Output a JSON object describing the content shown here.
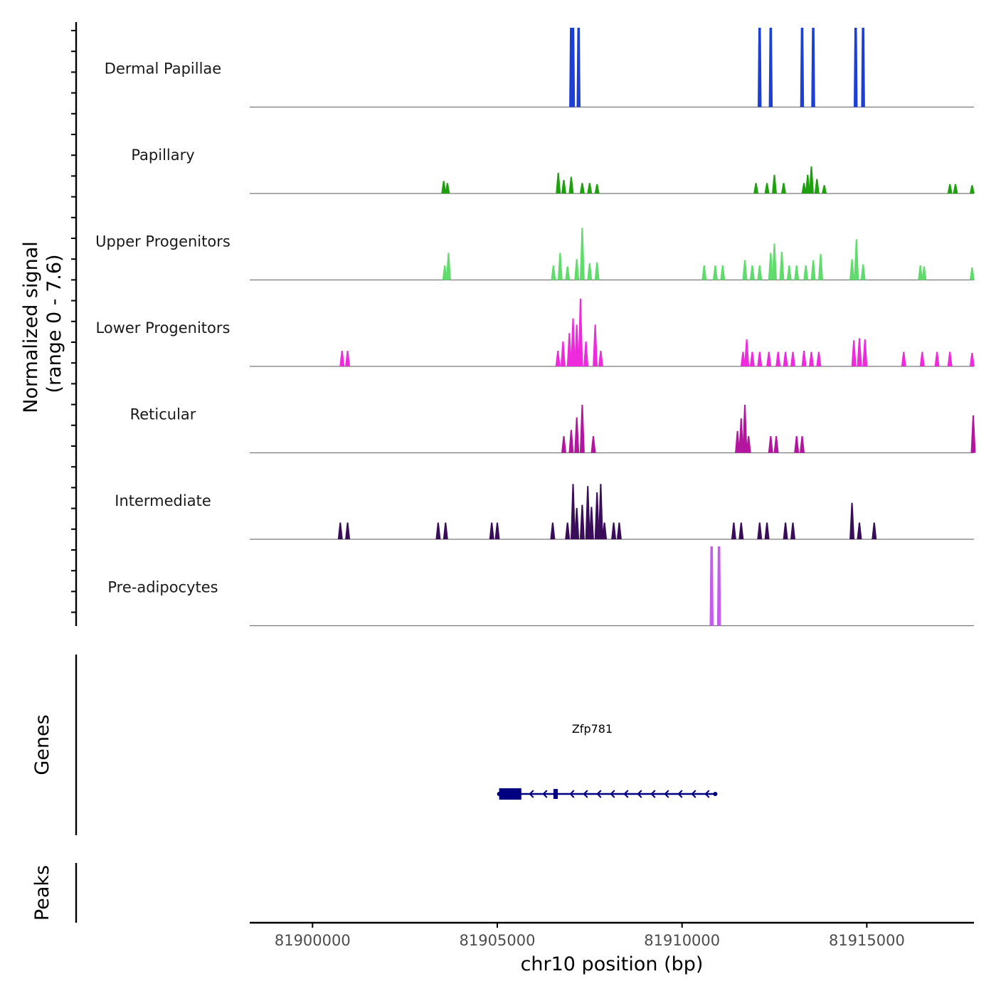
{
  "chart_data": {
    "type": "coverage",
    "y_axis_title": "Normalized signal",
    "y_axis_subtitle": "(range 0 - 7.6)",
    "y_range": [
      0,
      7.6
    ],
    "xlabel": "chr10 position (bp)",
    "xlim": [
      81898300,
      81917900
    ],
    "x_ticks": [
      81900000,
      81905000,
      81910000,
      81915000
    ],
    "x_tick_labels": [
      "81900000",
      "81905000",
      "81910000",
      "81915000"
    ],
    "tracks": [
      {
        "name": "Dermal Papillae",
        "color": "#1c3fd8",
        "peaks": [
          [
            81907000,
            7.6
          ],
          [
            81907050,
            7.6
          ],
          [
            81907200,
            7.6
          ],
          [
            81912100,
            7.6
          ],
          [
            81912400,
            7.6
          ],
          [
            81913250,
            7.6
          ],
          [
            81913550,
            7.6
          ],
          [
            81914700,
            7.6
          ],
          [
            81914900,
            7.6
          ]
        ]
      },
      {
        "name": "Papillary",
        "color": "#1fa00f",
        "peaks": [
          [
            81903550,
            1.2
          ],
          [
            81903650,
            1.0
          ],
          [
            81906650,
            2.0
          ],
          [
            81906800,
            1.3
          ],
          [
            81907000,
            1.6
          ],
          [
            81907300,
            1.0
          ],
          [
            81907500,
            1.0
          ],
          [
            81907700,
            0.9
          ],
          [
            81912000,
            1.0
          ],
          [
            81912300,
            1.0
          ],
          [
            81912500,
            1.8
          ],
          [
            81912750,
            1.0
          ],
          [
            81913300,
            1.0
          ],
          [
            81913400,
            1.8
          ],
          [
            81913500,
            2.6
          ],
          [
            81913650,
            1.4
          ],
          [
            81913850,
            0.8
          ],
          [
            81917250,
            0.9
          ],
          [
            81917400,
            0.9
          ],
          [
            81917850,
            0.8
          ]
        ]
      },
      {
        "name": "Upper Progenitors",
        "color": "#5fdc6c",
        "peaks": [
          [
            81903580,
            1.4
          ],
          [
            81903680,
            2.6
          ],
          [
            81906520,
            1.4
          ],
          [
            81906700,
            2.6
          ],
          [
            81906900,
            1.3
          ],
          [
            81907150,
            2.0
          ],
          [
            81907300,
            5.0
          ],
          [
            81907500,
            1.6
          ],
          [
            81907700,
            1.7
          ],
          [
            81910600,
            1.4
          ],
          [
            81910900,
            1.4
          ],
          [
            81911100,
            1.4
          ],
          [
            81911700,
            1.9
          ],
          [
            81911900,
            1.4
          ],
          [
            81912100,
            1.4
          ],
          [
            81912400,
            2.6
          ],
          [
            81912500,
            3.5
          ],
          [
            81912700,
            2.7
          ],
          [
            81912900,
            1.4
          ],
          [
            81913100,
            1.4
          ],
          [
            81913350,
            1.4
          ],
          [
            81913550,
            1.9
          ],
          [
            81913750,
            2.5
          ],
          [
            81914600,
            2.0
          ],
          [
            81914720,
            3.9
          ],
          [
            81914900,
            1.5
          ],
          [
            81916450,
            1.4
          ],
          [
            81916550,
            1.3
          ],
          [
            81917850,
            1.2
          ]
        ]
      },
      {
        "name": "Lower Progenitors",
        "color": "#ef2adc",
        "peaks": [
          [
            81900800,
            1.5
          ],
          [
            81900950,
            1.5
          ],
          [
            81906640,
            1.5
          ],
          [
            81906780,
            2.4
          ],
          [
            81906950,
            3.2
          ],
          [
            81907050,
            4.6
          ],
          [
            81907150,
            4.0
          ],
          [
            81907250,
            6.5
          ],
          [
            81907400,
            2.4
          ],
          [
            81907650,
            4.0
          ],
          [
            81907800,
            1.5
          ],
          [
            81911650,
            1.4
          ],
          [
            81911750,
            2.6
          ],
          [
            81911900,
            1.4
          ],
          [
            81912100,
            1.4
          ],
          [
            81912350,
            1.4
          ],
          [
            81912600,
            1.4
          ],
          [
            81912800,
            1.4
          ],
          [
            81913000,
            1.4
          ],
          [
            81913300,
            1.5
          ],
          [
            81913500,
            1.4
          ],
          [
            81913700,
            1.4
          ],
          [
            81914650,
            2.5
          ],
          [
            81914800,
            2.7
          ],
          [
            81914950,
            2.6
          ],
          [
            81916000,
            1.4
          ],
          [
            81916500,
            1.4
          ],
          [
            81916900,
            1.4
          ],
          [
            81917250,
            1.4
          ],
          [
            81917850,
            1.3
          ]
        ]
      },
      {
        "name": "Reticular",
        "color": "#b4159f",
        "peaks": [
          [
            81906800,
            1.6
          ],
          [
            81907000,
            2.2
          ],
          [
            81907150,
            3.4
          ],
          [
            81907300,
            4.6
          ],
          [
            81907600,
            1.6
          ],
          [
            81911500,
            2.1
          ],
          [
            81911600,
            3.3
          ],
          [
            81911700,
            4.6
          ],
          [
            81911800,
            1.6
          ],
          [
            81912400,
            1.6
          ],
          [
            81912550,
            1.6
          ],
          [
            81913100,
            1.6
          ],
          [
            81913250,
            1.6
          ],
          [
            81917880,
            3.6
          ]
        ]
      },
      {
        "name": "Intermediate",
        "color": "#3a0d5a",
        "peaks": [
          [
            81900750,
            1.6
          ],
          [
            81900950,
            1.6
          ],
          [
            81903400,
            1.6
          ],
          [
            81903600,
            1.6
          ],
          [
            81904850,
            1.6
          ],
          [
            81905000,
            1.6
          ],
          [
            81906500,
            1.6
          ],
          [
            81906900,
            1.6
          ],
          [
            81907050,
            5.3
          ],
          [
            81907150,
            3.0
          ],
          [
            81907300,
            3.3
          ],
          [
            81907450,
            5.1
          ],
          [
            81907550,
            3.1
          ],
          [
            81907700,
            4.5
          ],
          [
            81907800,
            5.3
          ],
          [
            81907900,
            1.6
          ],
          [
            81908150,
            1.6
          ],
          [
            81908300,
            1.6
          ],
          [
            81911400,
            1.6
          ],
          [
            81911600,
            1.6
          ],
          [
            81912100,
            1.6
          ],
          [
            81912300,
            1.6
          ],
          [
            81912800,
            1.6
          ],
          [
            81913000,
            1.6
          ],
          [
            81914600,
            3.5
          ],
          [
            81914800,
            1.6
          ],
          [
            81915200,
            1.6
          ]
        ]
      },
      {
        "name": "Pre-adipocytes",
        "color": "#c45cf0",
        "peaks": [
          [
            81910800,
            7.6
          ],
          [
            81911000,
            7.6
          ]
        ]
      }
    ],
    "genes_panel_title": "Genes",
    "genes": [
      {
        "name": "Zfp781",
        "start": 81905050,
        "end": 81910900,
        "strand": "-",
        "exons": [
          [
            81905050,
            81905650
          ],
          [
            81906520,
            81906640
          ]
        ]
      }
    ],
    "peaks_panel_title": "Peaks"
  }
}
